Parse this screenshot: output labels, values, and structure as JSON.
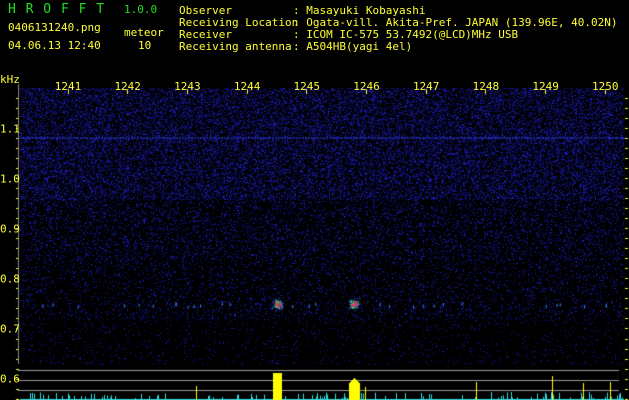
{
  "header": {
    "app_name": "H R O F F T",
    "version": "1.0.0",
    "filename": "0406131240.png",
    "datetime": "04.06.13 12:40",
    "meteor_label": "meteor",
    "meteor_count": "10"
  },
  "info": [
    {
      "label": "Observer",
      "value": ": Masayuki Kobayashi"
    },
    {
      "label": "Receiving Location",
      "value": ": Ogata-vill. Akita-Pref. JAPAN (139.96E, 40.02N)"
    },
    {
      "label": "Receiver",
      "value": ": ICOM IC-575 53.7492(@LCD)MHz USB"
    },
    {
      "label": "Receiving antenna",
      "value": ": A504HB(yagi 4el)"
    }
  ],
  "chart_data": {
    "type": "heatmap",
    "ylabel": "kHz",
    "x_ticks": [
      "1241",
      "1242",
      "1243",
      "1244",
      "1245",
      "1246",
      "1247",
      "1248",
      "1249",
      "1250"
    ],
    "y_ticks": [
      "1.1",
      "1.0",
      "0.9",
      "0.8",
      "0.7",
      "0.6"
    ],
    "ylim": [
      0.56,
      1.18
    ],
    "echo_frequency_khz": 0.75,
    "strong_echoes_time": [
      1244.5,
      1245.8
    ],
    "colors": {
      "background": "#000000",
      "noise": "#2233cc",
      "text": "#ffff33",
      "title": "#22dd22",
      "histogram": "#33dddd",
      "histogram_peak": "#ffff00"
    }
  }
}
